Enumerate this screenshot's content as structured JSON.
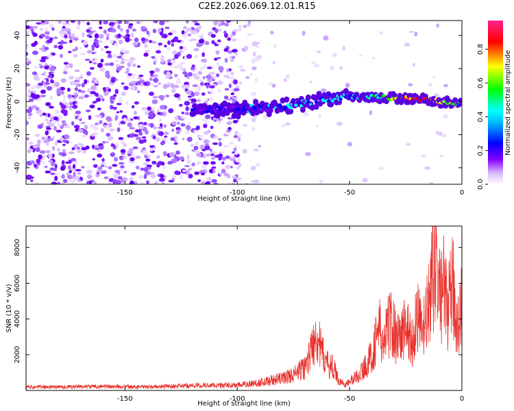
{
  "title": "C2E2.2026.069.12.01.R15",
  "chart_data": [
    {
      "type": "heatmap",
      "title": "C2E2.2026.069.12.01.R15",
      "xlabel": "Height of straight line (km)",
      "ylabel": "Frequency (Hz)",
      "xlim": [
        -194,
        0
      ],
      "ylim": [
        -50,
        49
      ],
      "xticks": [
        -150,
        -100,
        -50,
        0
      ],
      "yticks": [
        -40,
        -20,
        0,
        20,
        40
      ],
      "colorbar": {
        "label": "Normalized spectral amplitude",
        "range": [
          0,
          0.97
        ],
        "ticks": [
          0.0,
          0.2,
          0.4,
          0.6,
          0.8
        ],
        "tick_labels": [
          "0.0",
          "0.2",
          "0.4",
          "0.6",
          "0.8"
        ],
        "colormap": [
          "#ffffff",
          "#8800ff",
          "#0000ff",
          "#00ffff",
          "#00ff00",
          "#ffff00",
          "#ff0000",
          "#ff00aa"
        ]
      },
      "signal_track": {
        "x": [
          -120,
          -110,
          -100,
          -90,
          -80,
          -70,
          -60,
          -50,
          -40,
          -30,
          -20,
          -10,
          0
        ],
        "frequency": [
          -4,
          -5,
          -5,
          -4,
          -3,
          -1,
          2,
          3,
          3,
          2,
          2,
          0,
          -1
        ],
        "amplitude": [
          0.15,
          0.2,
          0.25,
          0.3,
          0.35,
          0.4,
          0.45,
          0.4,
          0.55,
          0.7,
          0.9,
          0.75,
          0.6
        ]
      },
      "grid": false
    },
    {
      "type": "line",
      "xlabel": "Height of straight line (km)",
      "ylabel": "SNR (10 * v/v)",
      "xlim": [
        -194,
        0
      ],
      "ylim": [
        0,
        9200
      ],
      "xticks": [
        -150,
        -100,
        -50,
        0
      ],
      "yticks": [
        2000,
        4000,
        6000,
        8000
      ],
      "color": "#e8302a",
      "series": [
        {
          "x": [
            -194,
            -180,
            -160,
            -140,
            -120,
            -100,
            -90,
            -80,
            -75,
            -70,
            -67,
            -65,
            -63,
            -60,
            -57,
            -55,
            -52,
            -50,
            -45,
            -40,
            -37,
            -35,
            -32,
            -30,
            -27,
            -25,
            -22,
            -20,
            -18,
            -16,
            -14,
            -12,
            -10,
            -8,
            -6,
            -4,
            -2,
            0
          ],
          "values": [
            200,
            200,
            230,
            200,
            280,
            300,
            450,
            700,
            900,
            1300,
            2300,
            3500,
            2400,
            1500,
            1300,
            600,
            300,
            500,
            1000,
            2000,
            3700,
            2500,
            4100,
            3300,
            3100,
            3800,
            2600,
            4600,
            3200,
            4000,
            5500,
            8000,
            5600,
            5800,
            4700,
            5900,
            3700,
            5100
          ]
        }
      ],
      "grid": false
    }
  ]
}
